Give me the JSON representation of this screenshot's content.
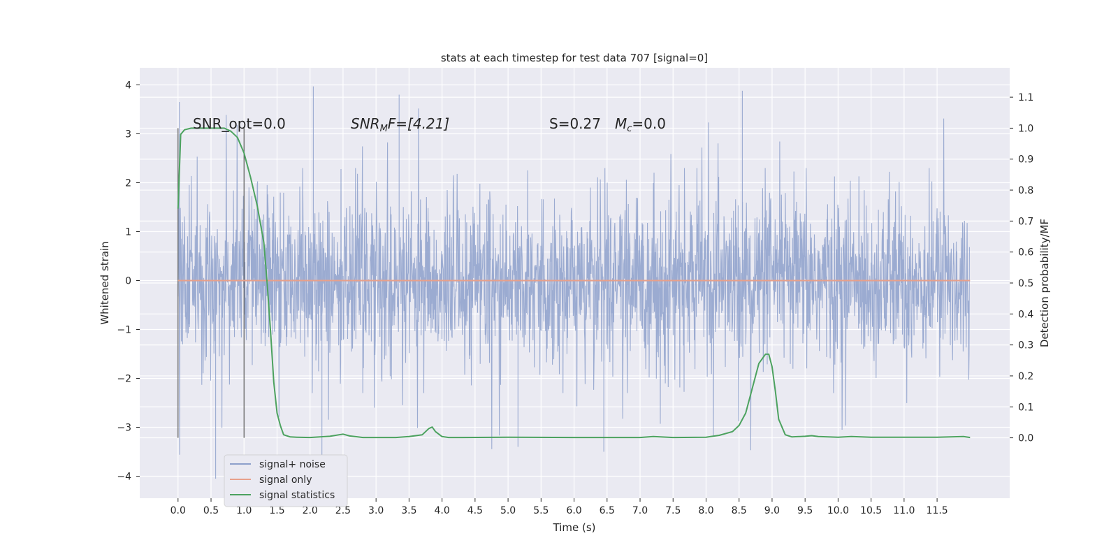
{
  "chart_data": {
    "type": "line",
    "title": "stats at each timestep for test data 707 [signal=0]",
    "xlabel": "Time (s)",
    "ylabel_left": "Whitened strain",
    "ylabel_right": "Detection probability/MF",
    "xlim": [
      -0.58,
      12.6
    ],
    "ylim_left": [
      -4.45,
      4.35
    ],
    "ylim_right": [
      -0.195,
      1.195
    ],
    "x_ticks": [
      "0.0",
      "0.5",
      "1.0",
      "1.5",
      "2.0",
      "2.5",
      "3.0",
      "3.5",
      "4.0",
      "4.5",
      "5.0",
      "5.5",
      "6.0",
      "6.5",
      "7.0",
      "7.5",
      "8.0",
      "8.5",
      "9.0",
      "9.5",
      "10.0",
      "10.5",
      "11.0",
      "11.5"
    ],
    "y_ticks_left": [
      -4,
      -3,
      -2,
      -1,
      0,
      1,
      2,
      3,
      4
    ],
    "y_ticks_right": [
      "0.0",
      "0.1",
      "0.2",
      "0.3",
      "0.4",
      "0.5",
      "0.6",
      "0.7",
      "0.8",
      "0.9",
      "1.0",
      "1.1"
    ],
    "grid": true,
    "legend_position": "lower-left",
    "annotations": {
      "snr_opt": "SNR_opt=0.0",
      "snr_mf_prefix": "SNR",
      "snr_mf_sub": "M",
      "snr_mf_suffix": "F=[4.21]",
      "s_value": "S=0.27",
      "mc_prefix": "M",
      "mc_sub": "c",
      "mc_suffix": "=0.0"
    },
    "vertical_lines_x": [
      0.0,
      1.0
    ],
    "series": [
      {
        "name": "signal+ noise",
        "color": "#8da0cb",
        "axis": "left",
        "description_samples": {
          "x_range": [
            0.0,
            11.99
          ],
          "typical_envelope": [
            -2.1,
            2.2
          ],
          "peaks": [
            [
              0.02,
              3.65
            ],
            [
              2.05,
              3.97
            ],
            [
              3.35,
              3.8
            ],
            [
              8.55,
              3.88
            ],
            [
              0.57,
              -4.05
            ],
            [
              6.45,
              -3.5
            ],
            [
              5.15,
              -3.4
            ],
            [
              2.18,
              -4.0
            ]
          ]
        }
      },
      {
        "name": "signal only",
        "color": "#e8a08a",
        "axis": "left",
        "x": [
          0.0,
          12.0
        ],
        "y": [
          0.0,
          0.0
        ]
      },
      {
        "name": "signal statistics",
        "color": "#4ca25f",
        "axis": "right",
        "x": [
          0.0,
          0.04,
          0.1,
          0.2,
          0.3,
          0.5,
          0.7,
          0.8,
          0.9,
          1.0,
          1.1,
          1.2,
          1.3,
          1.35,
          1.4,
          1.45,
          1.5,
          1.55,
          1.6,
          1.7,
          1.8,
          2.0,
          2.3,
          2.5,
          2.6,
          2.8,
          3.0,
          3.3,
          3.5,
          3.7,
          3.8,
          3.85,
          3.9,
          4.0,
          4.1,
          4.3,
          5.0,
          6.0,
          7.0,
          7.2,
          7.5,
          8.0,
          8.2,
          8.4,
          8.5,
          8.6,
          8.7,
          8.8,
          8.9,
          8.95,
          9.0,
          9.05,
          9.1,
          9.2,
          9.3,
          9.5,
          9.6,
          9.7,
          10.0,
          10.2,
          10.5,
          11.0,
          11.5,
          11.9,
          12.0
        ],
        "y": [
          0.74,
          0.98,
          0.995,
          1.0,
          1.0,
          1.0,
          1.0,
          0.99,
          0.97,
          0.92,
          0.84,
          0.75,
          0.63,
          0.5,
          0.35,
          0.18,
          0.08,
          0.04,
          0.01,
          0.003,
          0.002,
          0.001,
          0.005,
          0.012,
          0.006,
          0.001,
          0.001,
          0.001,
          0.004,
          0.01,
          0.03,
          0.035,
          0.02,
          0.004,
          0.001,
          0.001,
          0.002,
          0.001,
          0.001,
          0.004,
          0.001,
          0.002,
          0.008,
          0.02,
          0.04,
          0.08,
          0.16,
          0.24,
          0.27,
          0.27,
          0.23,
          0.15,
          0.06,
          0.01,
          0.003,
          0.005,
          0.007,
          0.004,
          0.002,
          0.004,
          0.002,
          0.002,
          0.002,
          0.004,
          0.001
        ]
      }
    ]
  }
}
